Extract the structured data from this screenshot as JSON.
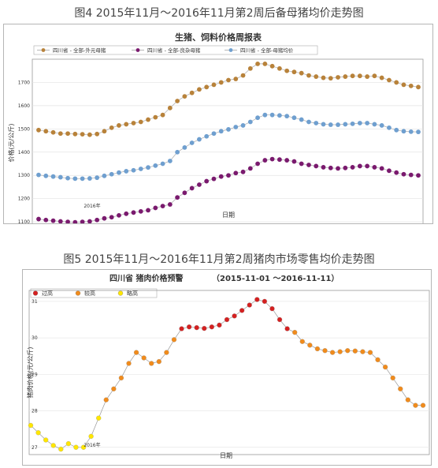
{
  "captions": {
    "fig4": "图4 2015年11月～2016年11月第2周后备母猪均价走势图",
    "fig5": "图5 2015年11月～2016年11月第2周猪肉市场零售均价走势图"
  },
  "chart_data": [
    {
      "type": "line",
      "title": "生猪、饲料价格周报表",
      "xlabel": "日期",
      "ylabel": "价格(元/公斤)",
      "ylim": [
        1080,
        1800
      ],
      "yticks": [
        1100,
        1200,
        1300,
        1400,
        1500,
        1600,
        1700
      ],
      "x_tick_label": "2016年",
      "legend_position": "top",
      "grid": true,
      "series": [
        {
          "name": "四川省 - 全部-外元母猪",
          "color": "#b8823a",
          "values": [
            1495,
            1490,
            1485,
            1480,
            1480,
            1478,
            1477,
            1475,
            1478,
            1490,
            1505,
            1515,
            1520,
            1525,
            1530,
            1540,
            1550,
            1560,
            1590,
            1620,
            1640,
            1655,
            1670,
            1680,
            1690,
            1700,
            1710,
            1715,
            1730,
            1760,
            1780,
            1780,
            1770,
            1760,
            1750,
            1745,
            1740,
            1730,
            1725,
            1720,
            1718,
            1722,
            1725,
            1728,
            1728,
            1725,
            1728,
            1720,
            1710,
            1700,
            1690,
            1685,
            1680
          ]
        },
        {
          "name": "四川省 - 全部-良杂母猪",
          "color": "#7a1a6e",
          "values": [
            1112,
            1108,
            1105,
            1102,
            1100,
            1098,
            1100,
            1102,
            1108,
            1115,
            1120,
            1128,
            1135,
            1140,
            1145,
            1150,
            1160,
            1168,
            1175,
            1205,
            1225,
            1245,
            1260,
            1275,
            1285,
            1295,
            1300,
            1310,
            1315,
            1330,
            1350,
            1365,
            1370,
            1368,
            1365,
            1360,
            1350,
            1345,
            1340,
            1335,
            1332,
            1330,
            1332,
            1335,
            1340,
            1340,
            1335,
            1330,
            1320,
            1312,
            1305,
            1302,
            1300
          ]
        },
        {
          "name": "四川省 - 全部-母猪均价",
          "color": "#6f9fcf",
          "values": [
            1302,
            1298,
            1295,
            1292,
            1288,
            1286,
            1286,
            1287,
            1290,
            1298,
            1305,
            1312,
            1318,
            1322,
            1328,
            1334,
            1342,
            1350,
            1362,
            1400,
            1420,
            1440,
            1455,
            1468,
            1480,
            1490,
            1498,
            1508,
            1515,
            1530,
            1548,
            1560,
            1560,
            1558,
            1555,
            1548,
            1540,
            1530,
            1525,
            1520,
            1518,
            1518,
            1520,
            1522,
            1525,
            1525,
            1520,
            1515,
            1505,
            1495,
            1490,
            1488,
            1487
          ]
        }
      ]
    },
    {
      "type": "line",
      "title": "四川省 猪肉价格预警",
      "subtitle": "（2015-11-01 ～2016-11-11）",
      "xlabel": "日期",
      "ylabel": "猪肉价格(元/公斤)",
      "ylim": [
        26.8,
        31.3
      ],
      "yticks": [
        27,
        28,
        29,
        30,
        31
      ],
      "x_tick_label": "2016年",
      "legend_position": "top-left",
      "grid": true,
      "legend": [
        {
          "label": "过高",
          "color": "#d42020"
        },
        {
          "label": "较高",
          "color": "#f08b1c"
        },
        {
          "label": "略高",
          "color": "#ffe600"
        }
      ],
      "values": [
        27.6,
        27.4,
        27.2,
        27.05,
        26.95,
        27.1,
        27.0,
        27.0,
        27.3,
        27.8,
        28.3,
        28.6,
        28.9,
        29.3,
        29.6,
        29.45,
        29.3,
        29.35,
        29.6,
        29.95,
        30.25,
        30.3,
        30.28,
        30.26,
        30.3,
        30.35,
        30.5,
        30.6,
        30.75,
        30.9,
        31.05,
        31.0,
        30.8,
        30.5,
        30.25,
        30.15,
        29.9,
        29.8,
        29.7,
        29.65,
        29.6,
        29.62,
        29.65,
        29.64,
        29.62,
        29.6,
        29.4,
        29.2,
        28.9,
        28.6,
        28.3,
        28.15,
        28.15
      ],
      "levels": [
        "略高",
        "略高",
        "略高",
        "略高",
        "略高",
        "略高",
        "略高",
        "略高",
        "略高",
        "略高",
        "较高",
        "较高",
        "较高",
        "较高",
        "较高",
        "较高",
        "较高",
        "较高",
        "较高",
        "较高",
        "过高",
        "过高",
        "过高",
        "过高",
        "过高",
        "过高",
        "过高",
        "过高",
        "过高",
        "过高",
        "过高",
        "过高",
        "过高",
        "过高",
        "过高",
        "较高",
        "较高",
        "较高",
        "较高",
        "较高",
        "较高",
        "较高",
        "较高",
        "较高",
        "较高",
        "较高",
        "较高",
        "较高",
        "较高",
        "较高",
        "较高",
        "较高",
        "较高"
      ]
    }
  ]
}
